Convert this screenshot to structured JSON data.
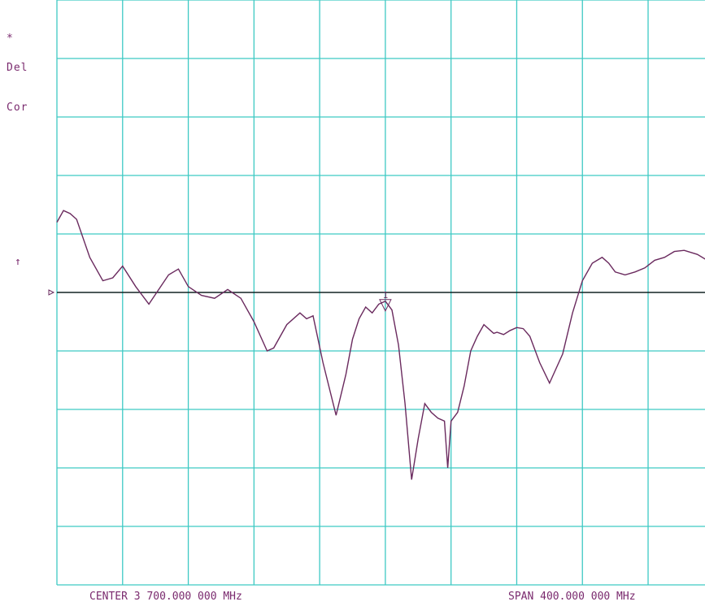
{
  "side_labels": {
    "asterisk": "*",
    "del": "Del",
    "cor": "Cor",
    "up_arrow": "↑"
  },
  "footer": {
    "center": "CENTER 3 700.000 000 MHz",
    "span": "SPAN  400.000 000 MHz"
  },
  "marker": {
    "number": "1"
  },
  "colors": {
    "grid": "#3ec9c4",
    "trace": "#6a2a5e",
    "reference": "#000000",
    "text": "#7a2a6e"
  },
  "chart_data": {
    "type": "line",
    "title": "",
    "xlabel": "",
    "ylabel": "",
    "x_center_mhz": 3700,
    "x_span_mhz": 400,
    "xlim": [
      3500,
      3900
    ],
    "ylim": [
      -5,
      5
    ],
    "grid": true,
    "divisions": {
      "x": 10,
      "y": 10
    },
    "reference_level_div": 0,
    "marker_x_mhz": 3700,
    "series": [
      {
        "x": [
          3500,
          3504,
          3508,
          3512,
          3520,
          3528,
          3534,
          3540,
          3548,
          3556,
          3562,
          3568,
          3574,
          3580,
          3588,
          3596,
          3604,
          3612,
          3620,
          3628,
          3632,
          3640,
          3648,
          3652,
          3656,
          3662,
          3670,
          3676,
          3680,
          3684,
          3688,
          3692,
          3696,
          3700,
          3704,
          3708,
          3712,
          3716,
          3720,
          3724,
          3728,
          3732,
          3736,
          3738,
          3740,
          3744,
          3748,
          3752,
          3756,
          3760,
          3764,
          3766,
          3768,
          3772,
          3776,
          3780,
          3784,
          3788,
          3794,
          3800,
          3808,
          3814,
          3820,
          3826,
          3832,
          3836,
          3840,
          3846,
          3852,
          3858,
          3864,
          3870,
          3876,
          3882,
          3890,
          3896,
          3900
        ],
        "y": [
          1.2,
          1.4,
          1.35,
          1.25,
          0.6,
          0.2,
          0.25,
          0.45,
          0.1,
          -0.2,
          0.05,
          0.3,
          0.4,
          0.1,
          -0.05,
          -0.1,
          0.05,
          -0.1,
          -0.5,
          -1.0,
          -0.95,
          -0.55,
          -0.35,
          -0.45,
          -0.4,
          -1.2,
          -2.1,
          -1.4,
          -0.8,
          -0.45,
          -0.25,
          -0.35,
          -0.2,
          -0.15,
          -0.3,
          -0.9,
          -1.9,
          -3.2,
          -2.5,
          -1.9,
          -2.05,
          -2.15,
          -2.2,
          -3.0,
          -2.2,
          -2.05,
          -1.6,
          -1.0,
          -0.75,
          -0.55,
          -0.65,
          -0.7,
          -0.68,
          -0.72,
          -0.65,
          -0.6,
          -0.62,
          -0.75,
          -1.2,
          -1.55,
          -1.05,
          -0.35,
          0.2,
          0.5,
          0.6,
          0.5,
          0.35,
          0.3,
          0.35,
          0.42,
          0.55,
          0.6,
          0.7,
          0.72,
          0.65,
          0.55,
          0.5
        ]
      }
    ]
  }
}
